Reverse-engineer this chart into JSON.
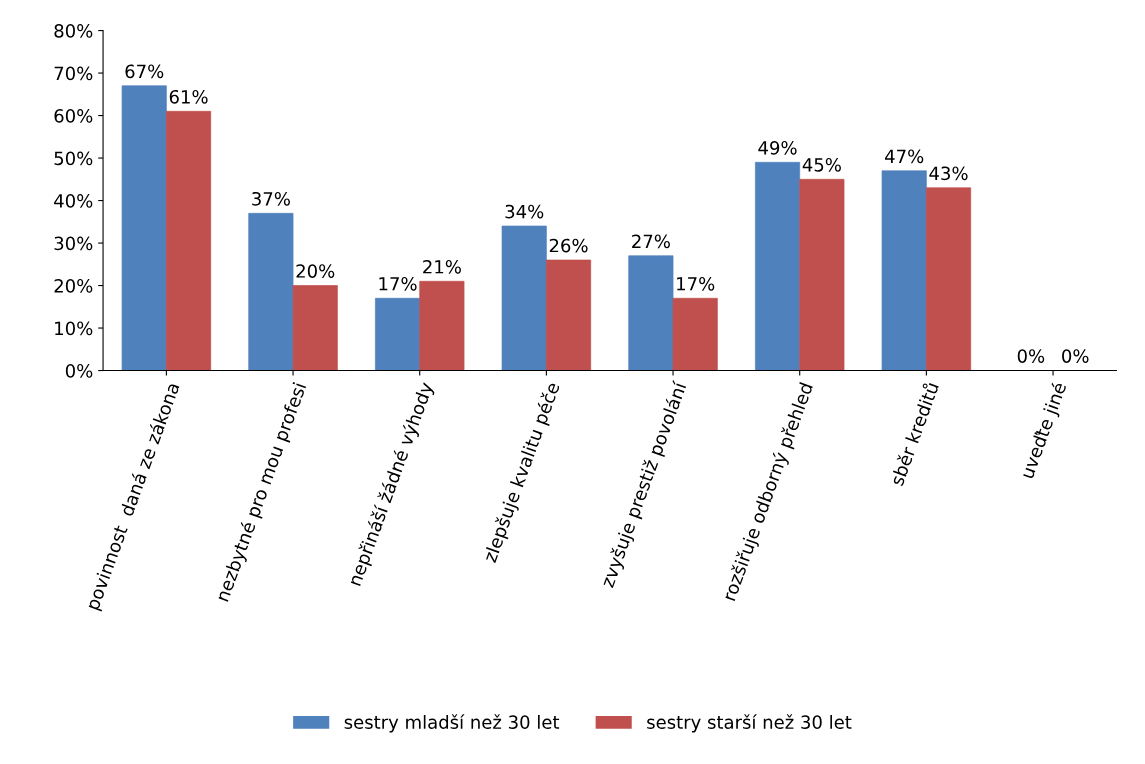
{
  "chart_data": {
    "type": "bar",
    "categories": [
      "povinnost  daná ze zákona",
      "nezbytné pro mou profesi",
      "nepřináší žádné výhody",
      "zlepšuje kvalitu péče",
      "zvyšuje prestiž povolání",
      "rozšiřuje odborný přehled",
      "sběr kreditů",
      "uveďte jiné"
    ],
    "series": [
      {
        "name": "sestry mladší než 30 let",
        "color": "#4f81bd",
        "values": [
          67,
          37,
          17,
          34,
          27,
          49,
          47,
          0
        ],
        "value_labels": [
          "67%",
          "37%",
          "17%",
          "34%",
          "27%",
          "49%",
          "47%",
          "0%"
        ]
      },
      {
        "name": "sestry starší než 30 let",
        "color": "#c0504d",
        "values": [
          61,
          20,
          21,
          26,
          17,
          45,
          43,
          0
        ],
        "value_labels": [
          "61%",
          "20%",
          "21%",
          "26%",
          "17%",
          "45%",
          "43%",
          "0%"
        ]
      }
    ],
    "ylim": [
      0,
      80
    ],
    "yticks": [
      {
        "value": 0,
        "label": "0%"
      },
      {
        "value": 10,
        "label": "10%"
      },
      {
        "value": 20,
        "label": "20%"
      },
      {
        "value": 30,
        "label": "30%"
      },
      {
        "value": 40,
        "label": "40%"
      },
      {
        "value": 50,
        "label": "50%"
      },
      {
        "value": 60,
        "label": "60%"
      },
      {
        "value": 70,
        "label": "70%"
      },
      {
        "value": 80,
        "label": "80%"
      }
    ],
    "grid": false,
    "legend": "bottom"
  }
}
